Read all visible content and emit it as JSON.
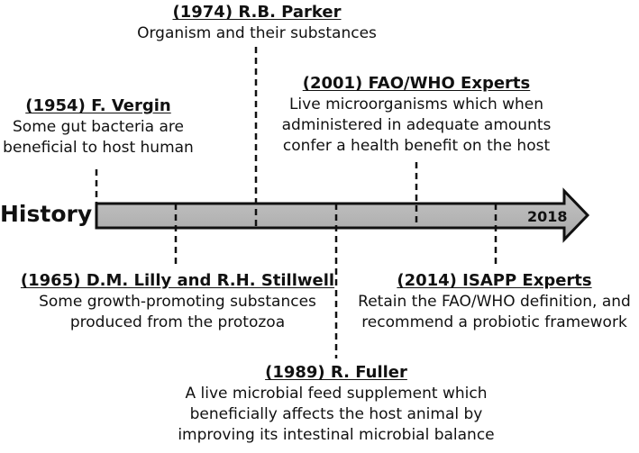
{
  "axis_label": "History",
  "end_year": "2018",
  "events": [
    {
      "head": "(1954) F. Vergin",
      "desc": [
        "Some gut bacteria are",
        "beneficial to host human"
      ]
    },
    {
      "head": "(1965) D.M. Lilly and R.H. Stillwell",
      "desc": [
        "Some growth-promoting substances",
        "produced from the protozoa"
      ]
    },
    {
      "head": "(1974) R.B. Parker",
      "desc": [
        "Organism and their substances"
      ]
    },
    {
      "head": "(1989) R. Fuller",
      "desc": [
        "A live microbial feed supplement which",
        "beneficially affects the host animal by",
        "improving its intestinal microbial balance"
      ]
    },
    {
      "head": "(2001) FAO/WHO Experts",
      "desc": [
        "Live microorganisms which when",
        "administered in adequate amounts",
        "confer a health benefit on the host"
      ]
    },
    {
      "head": "(2014) ISAPP Experts",
      "desc": [
        "Retain the FAO/WHO definition, and",
        "recommend a probiotic framework"
      ]
    }
  ]
}
